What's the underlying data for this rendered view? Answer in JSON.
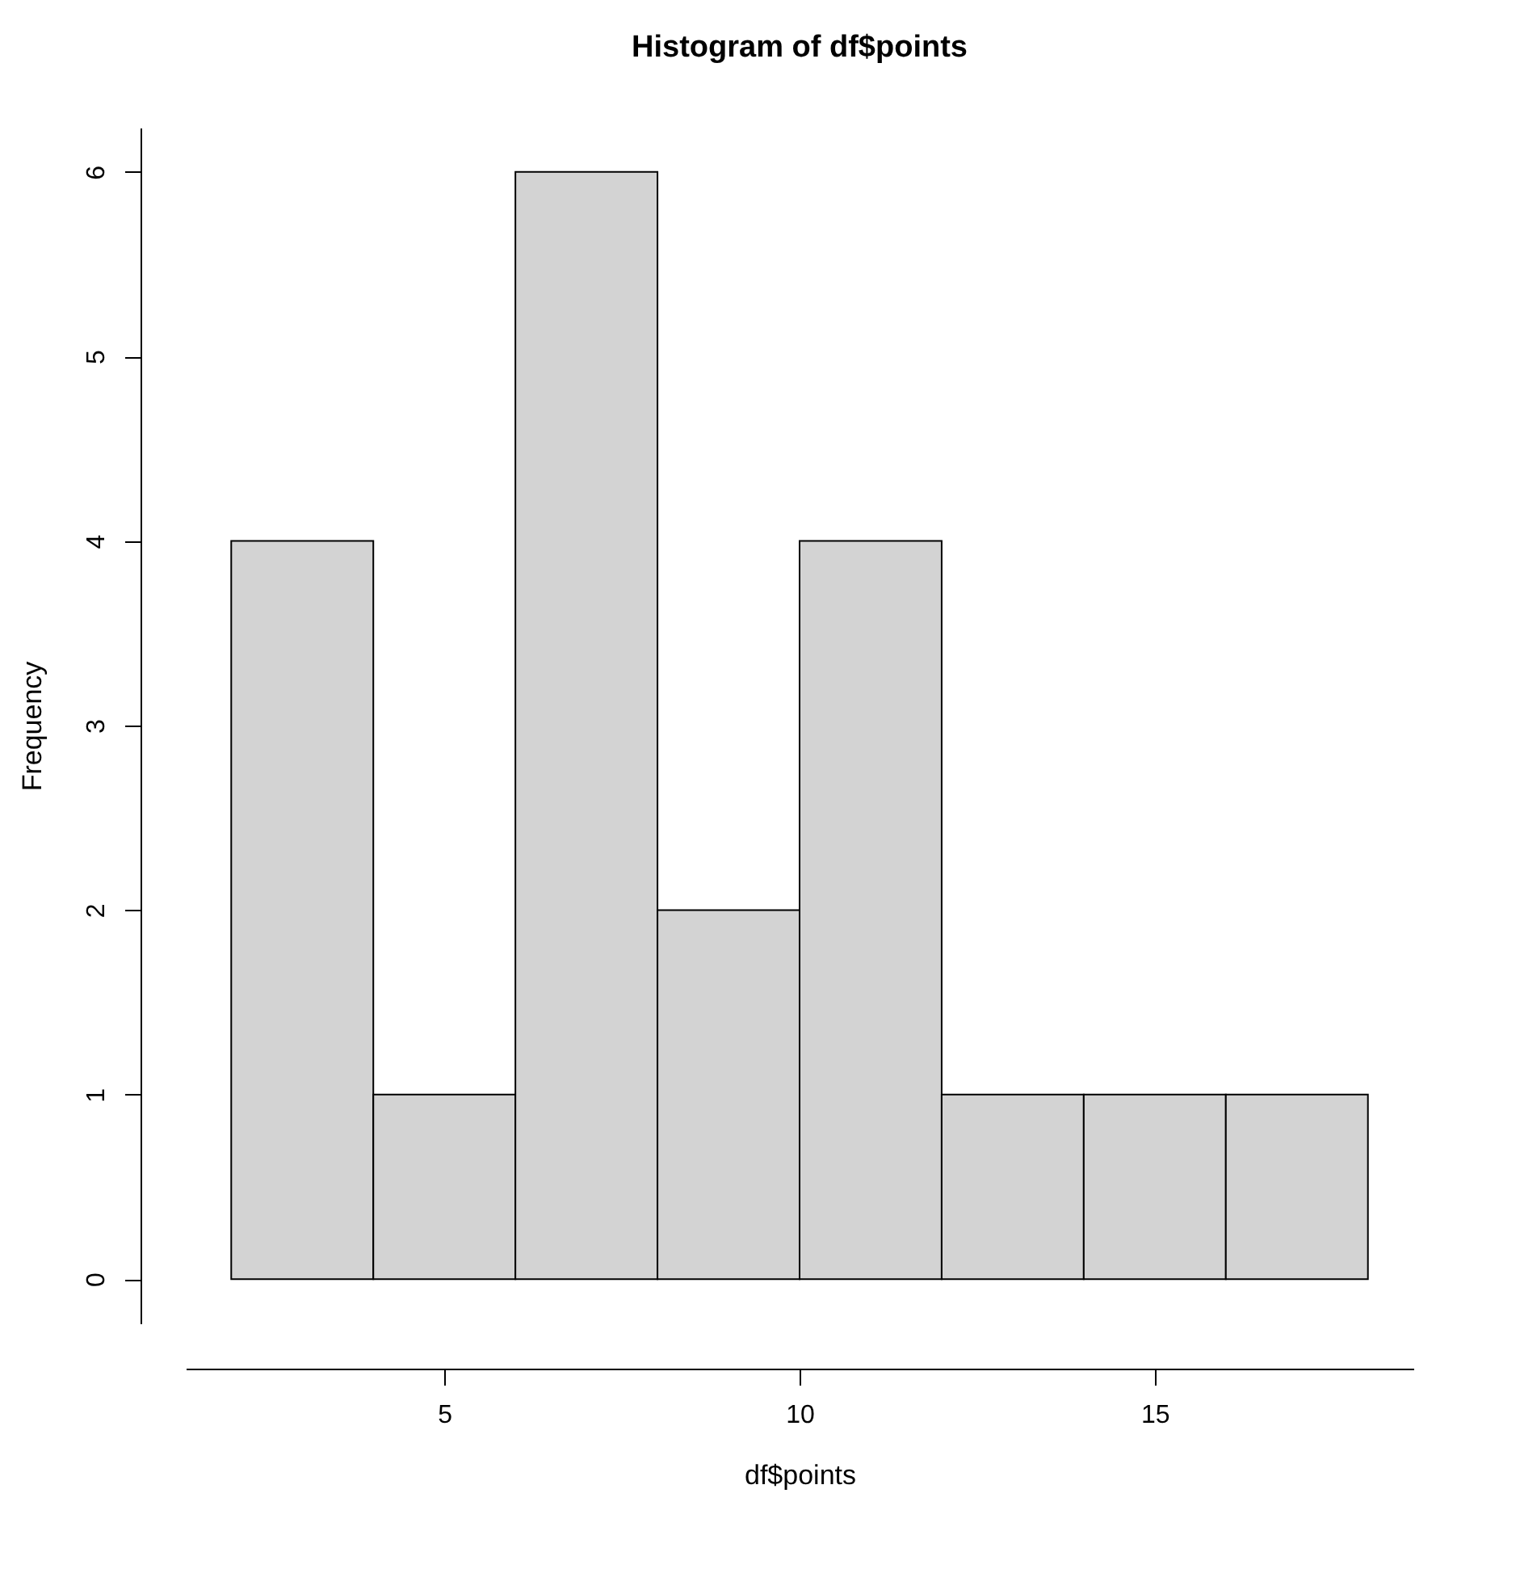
{
  "chart_data": {
    "type": "histogram",
    "title": "Histogram of df$points",
    "xlabel": "df$points",
    "ylabel": "Frequency",
    "bins": [
      2,
      4,
      6,
      8,
      10,
      12,
      14,
      16,
      18
    ],
    "values": [
      4,
      1,
      6,
      2,
      4,
      1,
      1,
      1
    ],
    "color": "#d3d3d3",
    "xlim": [
      1.36,
      18.64
    ],
    "xticks": [
      5,
      10,
      15
    ],
    "ylim": [
      -0.24,
      6.24
    ],
    "yticks": [
      0,
      1,
      2,
      3,
      4,
      5,
      6
    ],
    "grid": false
  }
}
